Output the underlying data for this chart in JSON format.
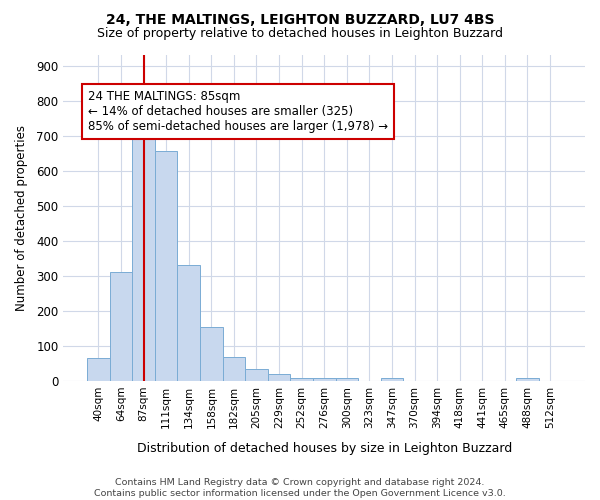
{
  "title1": "24, THE MALTINGS, LEIGHTON BUZZARD, LU7 4BS",
  "title2": "Size of property relative to detached houses in Leighton Buzzard",
  "xlabel": "Distribution of detached houses by size in Leighton Buzzard",
  "ylabel": "Number of detached properties",
  "categories": [
    "40sqm",
    "64sqm",
    "87sqm",
    "111sqm",
    "134sqm",
    "158sqm",
    "182sqm",
    "205sqm",
    "229sqm",
    "252sqm",
    "276sqm",
    "300sqm",
    "323sqm",
    "347sqm",
    "370sqm",
    "394sqm",
    "418sqm",
    "441sqm",
    "465sqm",
    "488sqm",
    "512sqm"
  ],
  "values": [
    65,
    310,
    690,
    655,
    330,
    155,
    68,
    35,
    20,
    10,
    10,
    10,
    0,
    8,
    0,
    0,
    0,
    0,
    0,
    10,
    0
  ],
  "bar_color": "#c8d8ee",
  "bar_edge_color": "#7aacd4",
  "vline_x": 2,
  "vline_color": "#cc0000",
  "annotation_text": "24 THE MALTINGS: 85sqm\n← 14% of detached houses are smaller (325)\n85% of semi-detached houses are larger (1,978) →",
  "annotation_box_color": "#ffffff",
  "annotation_box_edge": "#cc0000",
  "ylim": [
    0,
    930
  ],
  "yticks": [
    0,
    100,
    200,
    300,
    400,
    500,
    600,
    700,
    800,
    900
  ],
  "footer": "Contains HM Land Registry data © Crown copyright and database right 2024.\nContains public sector information licensed under the Open Government Licence v3.0.",
  "bg_color": "#ffffff",
  "plot_bg_color": "#ffffff",
  "grid_color": "#d0d8e8"
}
